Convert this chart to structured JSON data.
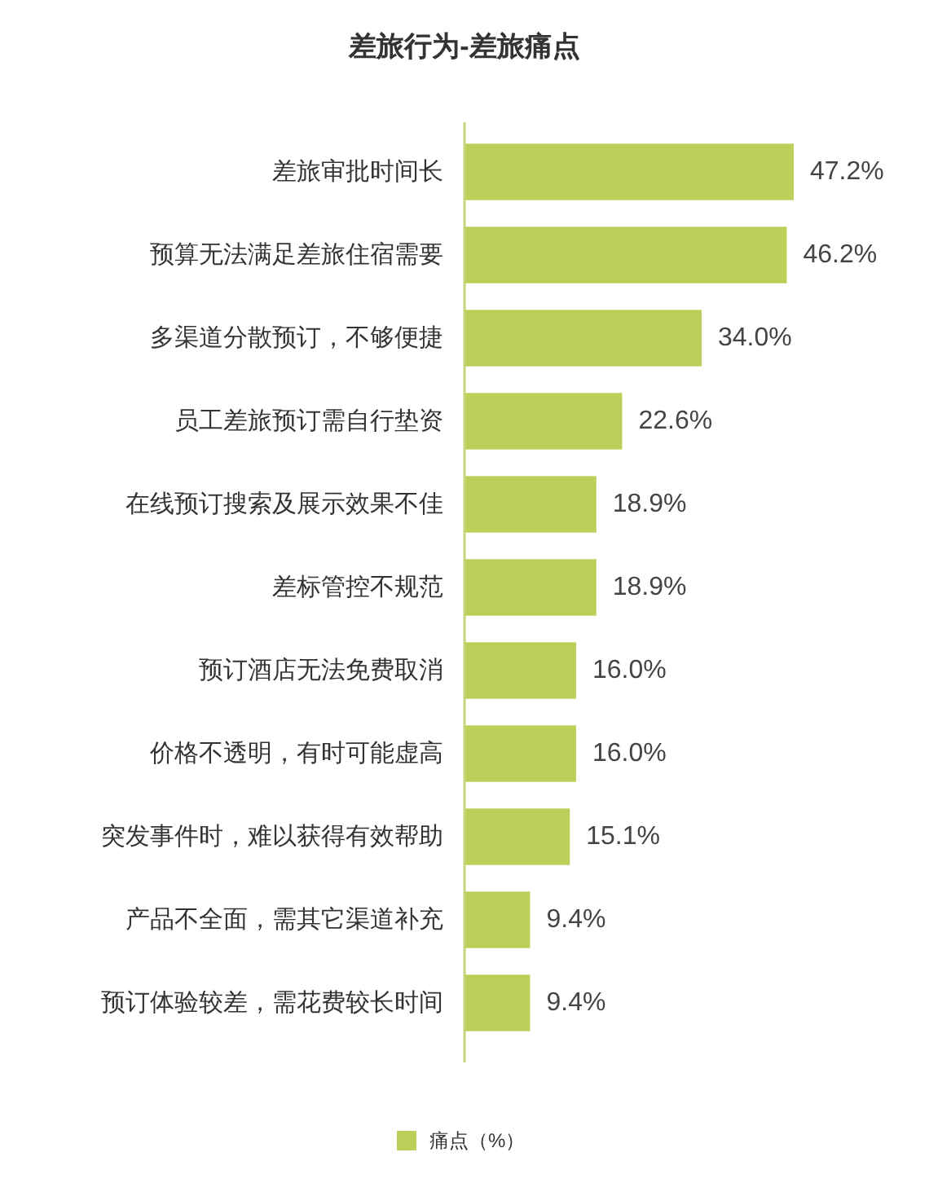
{
  "chart_data": {
    "type": "bar",
    "orientation": "horizontal",
    "title": "差旅行为-差旅痛点",
    "categories": [
      "差旅审批时间长",
      "预算无法满足差旅住宿需要",
      "多渠道分散预订，不够便捷",
      "员工差旅预订需自行垫资",
      "在线预订搜索及展示效果不佳",
      "差标管控不规范",
      "预订酒店无法免费取消",
      "价格不透明，有时可能虚高",
      "突发事件时，难以获得有效帮助",
      "产品不全面，需其它渠道补充",
      "预订体验较差，需花费较长时间"
    ],
    "series": [
      {
        "name": "痛点（%）",
        "color": "#bbd058",
        "values": [
          47.2,
          46.2,
          34.0,
          22.6,
          18.9,
          18.9,
          16.0,
          16.0,
          15.1,
          9.4,
          9.4
        ],
        "value_labels": [
          "47.2%",
          "46.2%",
          "34.0%",
          "22.6%",
          "18.9%",
          "18.9%",
          "16.0%",
          "16.0%",
          "15.1%",
          "9.4%",
          "9.4%"
        ]
      }
    ],
    "legend": "bottom"
  }
}
